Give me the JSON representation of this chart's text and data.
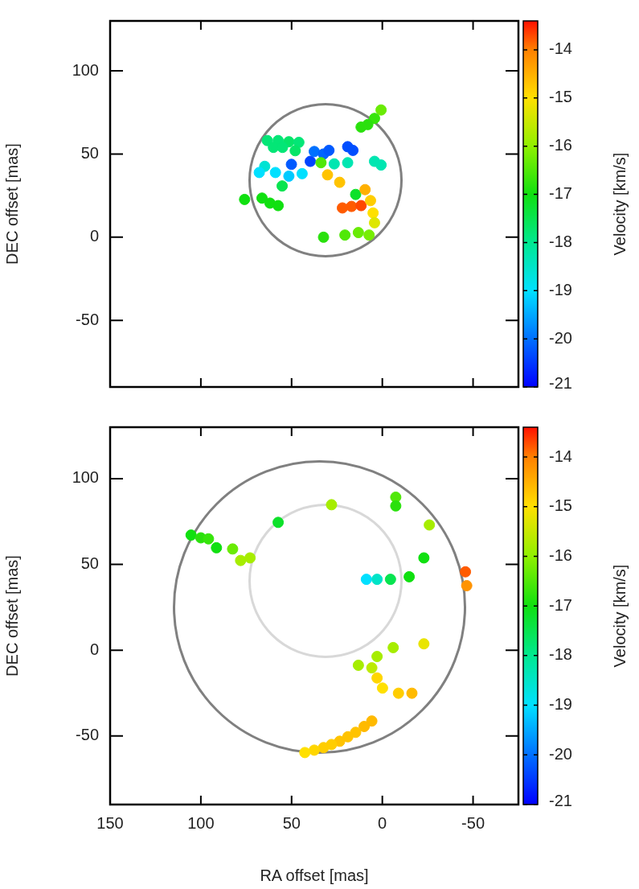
{
  "chart_data": [
    {
      "type": "scatter",
      "ylabel": "DEC offset [mas]",
      "clabel": "Velocity [km/s]",
      "xlim": [
        150,
        -75
      ],
      "xticks": [
        150,
        100,
        50,
        0,
        -50
      ],
      "ylim": [
        -90,
        130
      ],
      "yticks": [
        -50,
        0,
        50,
        100
      ],
      "clim": [
        -21,
        -13.4
      ],
      "cticks": [
        -21,
        -20,
        -19,
        -18,
        -17,
        -16,
        -15,
        -14
      ],
      "tick_labels": "y",
      "marker": "circle",
      "legend": false,
      "grid": false,
      "series": [
        {
          "type": "scatter",
          "x": [
            0.7,
            4.3,
            8.0,
            11.7,
            63.4,
            57.4,
            51.5,
            46.0,
            60.0,
            55.0,
            48.0,
            50.1,
            39.7,
            37.5,
            32.4,
            29.4,
            19.1,
            16.2,
            33.8,
            26.5,
            19.1,
            4.3,
            0.7,
            64.8,
            67.8,
            58.9,
            51.5,
            44.2,
            55.2,
            30.2,
            23.5,
            75.9,
            66.3,
            61.9,
            57.4,
            14.7,
            22.0,
            17.0,
            11.7,
            9.5,
            6.5,
            5.1,
            4.3,
            32.4,
            20.6,
            13.2,
            7.3
          ],
          "values": [
            76.5,
            71.4,
            67.7,
            66.2,
            58.1,
            58.1,
            57.4,
            57.0,
            54.0,
            54.0,
            52.0,
            43.8,
            45.6,
            51.5,
            50.0,
            52.2,
            54.4,
            52.2,
            44.8,
            44.1,
            44.8,
            45.6,
            43.4,
            42.6,
            38.9,
            38.9,
            36.7,
            38.2,
            30.8,
            37.5,
            33.0,
            22.7,
            23.5,
            20.5,
            19.0,
            25.7,
            17.6,
            18.5,
            19.0,
            28.6,
            22.0,
            14.6,
            8.7,
            0.0,
            1.3,
            2.8,
            1.3
          ],
          "cvalues": [
            -16.3,
            -16.7,
            -16.8,
            -16.8,
            -17.8,
            -17.8,
            -17.7,
            -17.8,
            -17.8,
            -17.8,
            -17.7,
            -20.2,
            -20.4,
            -20.0,
            -20.1,
            -20.2,
            -20.3,
            -20.3,
            -16.5,
            -18.3,
            -18.3,
            -18.3,
            -18.3,
            -18.6,
            -19.0,
            -19.0,
            -19.2,
            -19.0,
            -17.5,
            -14.7,
            -14.7,
            -17.0,
            -17.0,
            -17.0,
            -17.0,
            -17.2,
            -13.8,
            -13.8,
            -13.7,
            -14.5,
            -14.8,
            -15.0,
            -15.3,
            -16.8,
            -16.5,
            -16.3,
            -16.2
          ],
          "colors": [
            "#69eb05",
            "#36e50b",
            "#2ae00d",
            "#2ae00d",
            "#03e676",
            "#03e676",
            "#05e569",
            "#03e676",
            "#03e676",
            "#03e676",
            "#05e569",
            "#005aff",
            "#0043ff",
            "#0070ff",
            "#0065ff",
            "#005aff",
            "#004eff",
            "#004eff",
            "#50e808",
            "#00e6b1",
            "#00e6b1",
            "#00e6b1",
            "#00e6b1",
            "#00e3d3",
            "#00e0ff",
            "#00e0ff",
            "#00caff",
            "#00e0ff",
            "#08e450",
            "#ffc300",
            "#ffc300",
            "#10e010",
            "#10e010",
            "#10e010",
            "#10e010",
            "#0de12a",
            "#ff5b00",
            "#ff5b00",
            "#ff4800",
            "#ffb000",
            "#ffcd00",
            "#ffe000",
            "#dee700",
            "#2ae00d",
            "#50e808",
            "#69eb05",
            "#76ed03"
          ]
        }
      ]
    },
    {
      "type": "scatter",
      "xlabel": "RA offset [mas]",
      "ylabel": "DEC offset [mas]",
      "clabel": "Velocity [km/s]",
      "xlim": [
        150,
        -75
      ],
      "xticks": [
        150,
        100,
        50,
        0,
        -50
      ],
      "ylim": [
        -90,
        130
      ],
      "yticks": [
        -50,
        0,
        50,
        100
      ],
      "clim": [
        -21,
        -13.4
      ],
      "cticks": [
        -21,
        -20,
        -19,
        -18,
        -17,
        -16,
        -15,
        -14
      ],
      "marker": "circle",
      "legend": false,
      "grid": false,
      "series": [
        {
          "type": "scatter",
          "x": [
            105.4,
            100.0,
            95.8,
            91.4,
            82.5,
            78.1,
            72.9,
            57.4,
            28.0,
            -7.4,
            -7.4,
            -25.9,
            -22.9,
            8.8,
            2.9,
            -4.5,
            -14.8,
            -45.8,
            -46.5,
            -22.9,
            -6.0,
            2.9,
            13.2,
            5.8,
            2.9,
            -0.1,
            -8.9,
            -16.3,
            5.8,
            10.0,
            14.7,
            19.0,
            23.5,
            28.0,
            32.4,
            37.5,
            42.7
          ],
          "values": [
            67.1,
            65.5,
            64.9,
            59.7,
            59.0,
            52.3,
            53.8,
            74.5,
            84.8,
            89.2,
            84.1,
            73.0,
            53.8,
            41.3,
            41.3,
            41.3,
            42.8,
            45.7,
            37.6,
            3.7,
            1.5,
            -3.7,
            -8.8,
            -10.3,
            -16.2,
            -22.1,
            -25.1,
            -25.1,
            -41.3,
            -44.5,
            -47.9,
            -50.5,
            -53.1,
            -55.0,
            -56.8,
            -58.3,
            -59.7
          ],
          "cvalues": [
            -17.0,
            -16.8,
            -16.7,
            -17.0,
            -16.3,
            -15.8,
            -15.8,
            -17.2,
            -15.8,
            -16.5,
            -16.8,
            -15.8,
            -17.0,
            -19.0,
            -18.5,
            -17.5,
            -17.0,
            -13.8,
            -14.2,
            -15.2,
            -15.8,
            -15.8,
            -15.8,
            -15.6,
            -14.9,
            -15.0,
            -14.8,
            -14.6,
            -14.6,
            -14.6,
            -14.7,
            -14.7,
            -14.7,
            -14.8,
            -14.8,
            -14.9,
            -15.0
          ],
          "colors": [
            "#10e010",
            "#2ae00d",
            "#36e50b",
            "#10e010",
            "#69eb05",
            "#a6ed00",
            "#a6ed00",
            "#0de12a",
            "#a6ed00",
            "#50e808",
            "#2ae00d",
            "#a6ed00",
            "#10e010",
            "#00e0ff",
            "#00e4c8",
            "#08e450",
            "#10e010",
            "#ff5b00",
            "#ff9300",
            "#e9e500",
            "#a6ed00",
            "#a6ed00",
            "#a6ed00",
            "#bceb00",
            "#ffd600",
            "#ffe000",
            "#ffcd00",
            "#ffba00",
            "#ffba00",
            "#ffba00",
            "#ffc300",
            "#ffc300",
            "#ffc300",
            "#ffcd00",
            "#ffcd00",
            "#ffd600",
            "#ffe000"
          ]
        }
      ]
    }
  ]
}
